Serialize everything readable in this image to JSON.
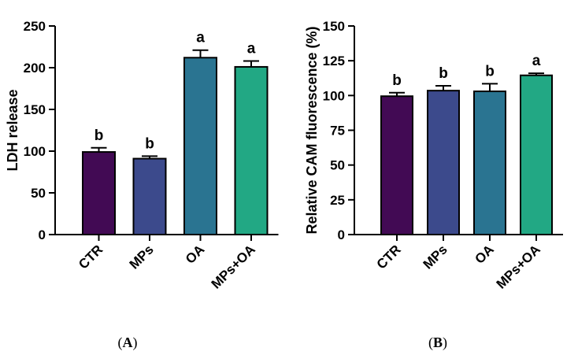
{
  "chart_data": [
    {
      "type": "bar",
      "panel_label": {
        "open": "(",
        "letter": "A",
        "close": ")"
      },
      "title": "",
      "xlabel": "",
      "ylabel": "LDH release",
      "ylim": [
        0,
        250
      ],
      "yticks": [
        0,
        50,
        100,
        150,
        200,
        250
      ],
      "categories": [
        "CTR",
        "MPs",
        "OA",
        "MPs+OA"
      ],
      "values": [
        99,
        91,
        212,
        201
      ],
      "errors": [
        5,
        3,
        9,
        7
      ],
      "significance": [
        "b",
        "b",
        "a",
        "a"
      ],
      "colors": [
        "#420a54",
        "#3c4a8c",
        "#2a7491",
        "#22a884"
      ]
    },
    {
      "type": "bar",
      "panel_label": {
        "open": "(",
        "letter": "B",
        "close": ")"
      },
      "title": "",
      "xlabel": "",
      "ylabel": "Relative CAM fluorescence (%)",
      "ylim": [
        0,
        150
      ],
      "yticks": [
        0,
        25,
        50,
        75,
        100,
        125,
        150
      ],
      "categories": [
        "CTR",
        "MPs",
        "OA",
        "MPs+OA"
      ],
      "values": [
        99.5,
        103.5,
        103,
        114.5
      ],
      "errors": [
        2.5,
        3.5,
        5.5,
        1.5
      ],
      "significance": [
        "b",
        "b",
        "b",
        "a"
      ],
      "colors": [
        "#420a54",
        "#3c4a8c",
        "#2a7491",
        "#22a884"
      ]
    }
  ]
}
